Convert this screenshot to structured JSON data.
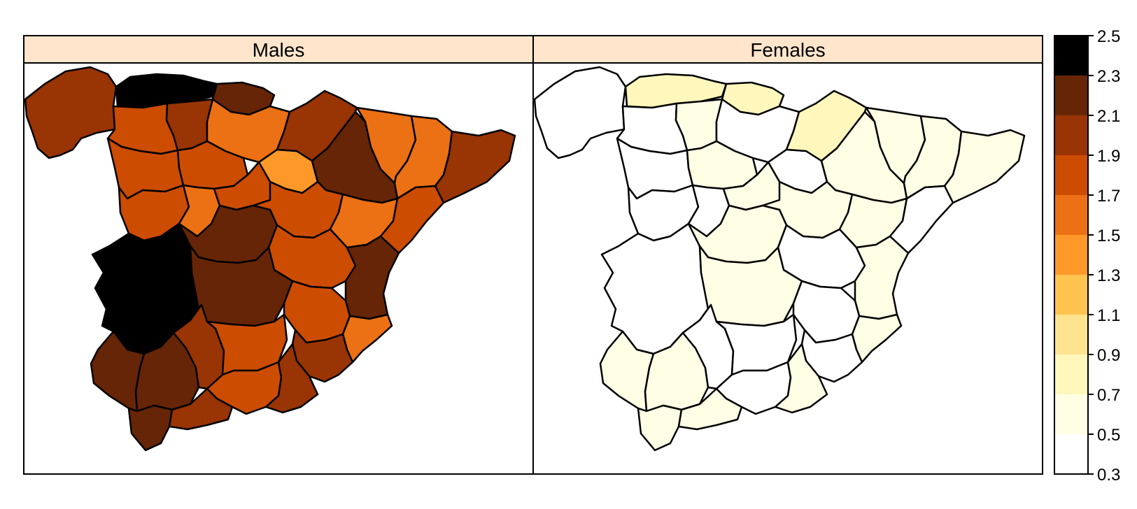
{
  "panels": [
    {
      "label": "Males",
      "regions": [
        {
          "id": "galicia",
          "value": 2.0
        },
        {
          "id": "asturias",
          "value": 2.4
        },
        {
          "id": "cantabria",
          "value": 2.2
        },
        {
          "id": "leon",
          "value": 1.8
        },
        {
          "id": "palencia",
          "value": 2.0
        },
        {
          "id": "burgos",
          "value": 1.6
        },
        {
          "id": "soria",
          "value": 1.4
        },
        {
          "id": "zaragoza",
          "value": 2.2
        },
        {
          "id": "navarra",
          "value": 2.0
        },
        {
          "id": "huesca",
          "value": 1.6
        },
        {
          "id": "lleida",
          "value": 1.6
        },
        {
          "id": "catalonia_east",
          "value": 2.0
        },
        {
          "id": "zamora",
          "value": 1.8
        },
        {
          "id": "valladolid",
          "value": 1.8
        },
        {
          "id": "salamanca",
          "value": 1.8
        },
        {
          "id": "avila",
          "value": 1.6
        },
        {
          "id": "segovia",
          "value": 1.8
        },
        {
          "id": "guadalajara",
          "value": 1.8
        },
        {
          "id": "teruel",
          "value": 1.6
        },
        {
          "id": "castellon",
          "value": 1.8
        },
        {
          "id": "extremadura",
          "value": 2.4
        },
        {
          "id": "toledo",
          "value": 2.2
        },
        {
          "id": "cuenca",
          "value": 1.8
        },
        {
          "id": "valencia",
          "value": 2.2
        },
        {
          "id": "ciudad_real",
          "value": 2.2
        },
        {
          "id": "albacete",
          "value": 1.8
        },
        {
          "id": "alicante",
          "value": 1.6
        },
        {
          "id": "huelva",
          "value": 2.2
        },
        {
          "id": "sevilla",
          "value": 2.2
        },
        {
          "id": "cordoba",
          "value": 2.0
        },
        {
          "id": "jaen",
          "value": 1.8
        },
        {
          "id": "murcia",
          "value": 2.0
        },
        {
          "id": "cadiz",
          "value": 2.2
        },
        {
          "id": "malaga",
          "value": 2.0
        },
        {
          "id": "granada",
          "value": 1.8
        },
        {
          "id": "almeria",
          "value": 2.0
        }
      ]
    },
    {
      "label": "Females",
      "regions": [
        {
          "id": "galicia",
          "value": 0.4
        },
        {
          "id": "asturias",
          "value": 0.8
        },
        {
          "id": "cantabria",
          "value": 0.8
        },
        {
          "id": "leon",
          "value": 0.4
        },
        {
          "id": "palencia",
          "value": 0.6
        },
        {
          "id": "burgos",
          "value": 0.4
        },
        {
          "id": "soria",
          "value": 0.4
        },
        {
          "id": "zaragoza",
          "value": 0.6
        },
        {
          "id": "navarra",
          "value": 0.8
        },
        {
          "id": "huesca",
          "value": 0.6
        },
        {
          "id": "lleida",
          "value": 0.6
        },
        {
          "id": "catalonia_east",
          "value": 0.6
        },
        {
          "id": "zamora",
          "value": 0.4
        },
        {
          "id": "valladolid",
          "value": 0.6
        },
        {
          "id": "salamanca",
          "value": 0.4
        },
        {
          "id": "avila",
          "value": 0.4
        },
        {
          "id": "segovia",
          "value": 0.6
        },
        {
          "id": "guadalajara",
          "value": 0.6
        },
        {
          "id": "teruel",
          "value": 0.6
        },
        {
          "id": "castellon",
          "value": 0.4
        },
        {
          "id": "extremadura",
          "value": 0.4
        },
        {
          "id": "toledo",
          "value": 0.6
        },
        {
          "id": "cuenca",
          "value": 0.4
        },
        {
          "id": "valencia",
          "value": 0.6
        },
        {
          "id": "ciudad_real",
          "value": 0.6
        },
        {
          "id": "albacete",
          "value": 0.4
        },
        {
          "id": "alicante",
          "value": 0.6
        },
        {
          "id": "huelva",
          "value": 0.6
        },
        {
          "id": "sevilla",
          "value": 0.6
        },
        {
          "id": "cordoba",
          "value": 0.4
        },
        {
          "id": "jaen",
          "value": 0.4
        },
        {
          "id": "murcia",
          "value": 0.4
        },
        {
          "id": "cadiz",
          "value": 0.6
        },
        {
          "id": "malaga",
          "value": 0.6
        },
        {
          "id": "granada",
          "value": 0.4
        },
        {
          "id": "almeria",
          "value": 0.6
        }
      ]
    }
  ],
  "legend": {
    "breaks": [
      0.3,
      0.5,
      0.7,
      0.9,
      1.1,
      1.3,
      1.5,
      1.7,
      1.9,
      2.1,
      2.3,
      2.5
    ],
    "tick_labels": [
      "0.3",
      "0.5",
      "0.7",
      "0.9",
      "1.1",
      "1.3",
      "1.5",
      "1.7",
      "1.9",
      "2.1",
      "2.3",
      "2.5"
    ],
    "colors": [
      "#FFFFFF",
      "#FFFFE5",
      "#FFF7BC",
      "#FEE391",
      "#FEC44F",
      "#FE9929",
      "#EC7014",
      "#CC4C02",
      "#993404",
      "#662506",
      "#000000"
    ]
  },
  "strip_color": "#FFE5CC"
}
